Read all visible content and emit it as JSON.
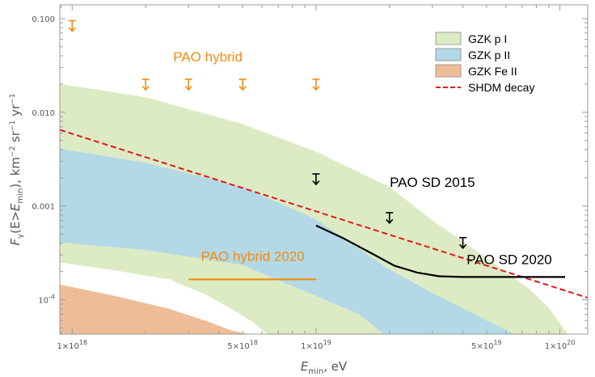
{
  "chart_data": {
    "type": "area",
    "title": "",
    "xlabel": "E_min, eV",
    "ylabel": "F_γ(E>E_min), km^-2 sr^-1 yr^-1",
    "x_scale": "log",
    "y_scale": "log",
    "xlim": [
      8.9e+17,
      1.3e+20
    ],
    "ylim": [
      4.3e-05,
      0.14
    ],
    "x_ticks": [
      {
        "value": 1e+18,
        "label": "1×10^18"
      },
      {
        "value": 5e+18,
        "label": "5×10^18"
      },
      {
        "value": 1e+19,
        "label": "1×10^19"
      },
      {
        "value": 5e+19,
        "label": "5×10^19"
      },
      {
        "value": 1e+20,
        "label": "1×10^20"
      }
    ],
    "y_ticks": [
      {
        "value": 0.1,
        "label": "0.100"
      },
      {
        "value": 0.01,
        "label": "0.010"
      },
      {
        "value": 0.001,
        "label": "0.001"
      },
      {
        "value": 0.0001,
        "label": "10^-4"
      }
    ],
    "colors": {
      "gzk_p_I": "#dcebc3",
      "gzk_p_II": "#b3d8e6",
      "gzk_fe_II": "#eebd98",
      "shdm": "#e5161b",
      "pao_hybrid": "#f28c0f",
      "pao_sd": "#000000",
      "frame": "#9a9a9a",
      "text": "#555555"
    },
    "bands": [
      {
        "name": "GZK p I",
        "upper": [
          [
            8.9e+17,
            0.02
          ],
          [
            2e+18,
            0.0145
          ],
          [
            5e+18,
            0.0075
          ],
          [
            1e+19,
            0.0038
          ],
          [
            2e+19,
            0.0016
          ],
          [
            3e+19,
            0.0007
          ],
          [
            5e+19,
            0.00028
          ],
          [
            7.5e+19,
            0.00013
          ],
          [
            9e+19,
            8.2e-05
          ],
          [
            1.05e+20,
            4.7e-05
          ],
          [
            1.08e+20,
            4.3e-05
          ]
        ],
        "lower": [
          [
            8.9e+17,
            0.00025
          ],
          [
            1.5e+18,
            0.000205
          ],
          [
            2.5e+18,
            0.000165
          ],
          [
            3.5e+18,
            0.000115
          ],
          [
            4.5e+18,
            8e-05
          ],
          [
            5.5e+18,
            5.8e-05
          ],
          [
            6.3e+18,
            4.3e-05
          ]
        ]
      },
      {
        "name": "GZK p II",
        "upper": [
          [
            8.9e+17,
            0.0041
          ],
          [
            2e+18,
            0.0029
          ],
          [
            5e+18,
            0.0016
          ],
          [
            1e+19,
            0.00072
          ],
          [
            1.5e+19,
            0.00035
          ],
          [
            2e+19,
            0.00021
          ],
          [
            3e+19,
            0.000118
          ],
          [
            5e+19,
            6e-05
          ],
          [
            6.5e+19,
            4.3e-05
          ]
        ],
        "lower": [
          [
            8.9e+17,
            0.00041
          ],
          [
            2e+18,
            0.00034
          ],
          [
            5e+18,
            0.000235
          ],
          [
            7.5e+18,
            0.00015
          ],
          [
            1e+19,
            0.00011
          ],
          [
            1.5e+19,
            7e-05
          ],
          [
            1.9e+19,
            4.3e-05
          ]
        ]
      },
      {
        "name": "GZK Fe II",
        "upper": [
          [
            8.9e+17,
            0.000145
          ],
          [
            1.5e+18,
            0.00011
          ],
          [
            2.5e+18,
            8e-05
          ],
          [
            3.5e+18,
            6e-05
          ],
          [
            4.5e+18,
            4.7e-05
          ],
          [
            5.3e+18,
            4.3e-05
          ]
        ],
        "lower": [
          [
            8.9e+17,
            4.3e-05
          ],
          [
            5.3e+18,
            4.3e-05
          ]
        ]
      }
    ],
    "series": [
      {
        "name": "SHDM decay",
        "style": "dashed",
        "points": [
          [
            8.9e+17,
            0.0065
          ],
          [
            1.3e+20,
            0.000105
          ]
        ]
      },
      {
        "name": "PAO SD 2020",
        "style": "solid",
        "points": [
          [
            1e+19,
            0.00062
          ],
          [
            1.3e+19,
            0.00045
          ],
          [
            1.7e+19,
            0.00031
          ],
          [
            2.1e+19,
            0.00023
          ],
          [
            2.6e+19,
            0.000195
          ],
          [
            3.2e+19,
            0.000178
          ],
          [
            4e+19,
            0.000175
          ],
          [
            6e+19,
            0.000175
          ],
          [
            1.05e+20,
            0.000175
          ]
        ]
      },
      {
        "name": "PAO hybrid 2020",
        "style": "solid",
        "points": [
          [
            3e+18,
            0.000165
          ],
          [
            1e+19,
            0.000165
          ]
        ]
      }
    ],
    "upper_limits": [
      {
        "group": "PAO hybrid",
        "x": 1e+18,
        "y": 0.095
      },
      {
        "group": "PAO hybrid",
        "x": 2e+18,
        "y": 0.0225
      },
      {
        "group": "PAO hybrid",
        "x": 3e+18,
        "y": 0.0225
      },
      {
        "group": "PAO hybrid",
        "x": 5e+18,
        "y": 0.0225
      },
      {
        "group": "PAO hybrid",
        "x": 1e+19,
        "y": 0.0225
      },
      {
        "group": "PAO SD 2015",
        "x": 1e+19,
        "y": 0.0022
      },
      {
        "group": "PAO SD 2015",
        "x": 2e+19,
        "y": 0.00085
      },
      {
        "group": "PAO SD 2015",
        "x": 4e+19,
        "y": 0.00046
      }
    ],
    "annotations": [
      {
        "text": "PAO hybrid",
        "color": "#f28c0f",
        "x": 3.6e+18,
        "y": 0.035
      },
      {
        "text": "PAO SD 2015",
        "color": "#000000",
        "x": 3e+19,
        "y": 0.0016
      },
      {
        "text": "PAO SD 2020",
        "color": "#000000",
        "x": 6.2e+19,
        "y": 0.00024
      },
      {
        "text": "PAO hybrid 2020",
        "color": "#f28c0f",
        "x": 5.5e+18,
        "y": 0.00026
      }
    ],
    "legend": {
      "placement": "top-right",
      "entries": [
        {
          "label": "GZK p I",
          "kind": "swatch",
          "color": "#dcebc3"
        },
        {
          "label": "GZK p II",
          "kind": "swatch",
          "color": "#b3d8e6"
        },
        {
          "label": "GZK Fe II",
          "kind": "swatch",
          "color": "#eebd98"
        },
        {
          "label": "SHDM decay",
          "kind": "dashed-line",
          "color": "#e5161b"
        }
      ]
    }
  }
}
